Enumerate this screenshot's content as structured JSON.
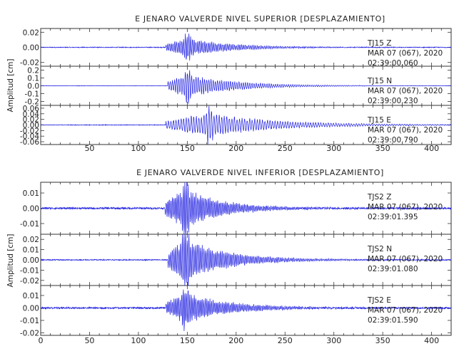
{
  "chart_data": [
    {
      "type": "line",
      "title": "E JENARO VALVERDE NIVEL SUPERIOR [DESPLAZAMIENTO]",
      "ylabel": "Amplitud [cm]",
      "xlim": [
        0,
        420
      ],
      "x_ticks": [
        "50",
        "100",
        "150",
        "200",
        "250",
        "300",
        "350",
        "400"
      ],
      "grid": false,
      "panels": [
        {
          "ylim": [
            -0.025,
            0.025
          ],
          "y_ticks": [
            "0.02",
            "0.00",
            "-0.02"
          ],
          "station": "TJ15",
          "component": "Z",
          "date": "MAR 07 (067), 2020",
          "time": "02:39:00.060",
          "trace": {
            "noise": 0.0005,
            "onset": 128,
            "peak": 0.013,
            "peak_t": 150,
            "period": 1.8,
            "decay": 45
          }
        },
        {
          "ylim": [
            -0.25,
            0.25
          ],
          "y_ticks": [
            "0.2",
            "0.1",
            "0.0",
            "-0.1",
            "-0.2"
          ],
          "station": "TJ15",
          "component": "N",
          "date": "MAR 07 (067), 2020",
          "time": "02:39:00.230",
          "trace": {
            "noise": 0.002,
            "onset": 130,
            "peak": 0.16,
            "peak_t": 150,
            "period": 2.2,
            "decay": 50
          }
        },
        {
          "ylim": [
            -0.07,
            0.07
          ],
          "y_ticks": [
            "0.06",
            "0.04",
            "0.02",
            "0.00",
            "-0.02",
            "-0.04",
            "-0.06"
          ],
          "station": "TJ15",
          "component": "E",
          "date": "MAR 07 (067), 2020",
          "time": "02:39:00.790",
          "trace": {
            "noise": 0.001,
            "onset": 128,
            "peak": 0.045,
            "peak_t": 172,
            "period": 2.6,
            "decay": 70
          }
        }
      ]
    },
    {
      "type": "line",
      "title": "E JENARO VALVERDE NIVEL INFERIOR [DESPLAZAMIENTO]",
      "ylabel": "Amplitud [cm]",
      "xlim": [
        0,
        420
      ],
      "x_ticks": [
        "0",
        "50",
        "100",
        "150",
        "200",
        "250",
        "300",
        "350",
        "400"
      ],
      "grid": false,
      "panels": [
        {
          "ylim": [
            -0.017,
            0.017
          ],
          "y_ticks": [
            "0.01",
            "0.00",
            "-0.01"
          ],
          "station": "TJS2",
          "component": "Z",
          "date": "MAR 07 (067), 2020",
          "time": "02:39:01.395",
          "trace": {
            "noise": 0.0006,
            "onset": 127,
            "peak": 0.014,
            "peak_t": 148,
            "period": 1.6,
            "decay": 40
          }
        },
        {
          "ylim": [
            -0.025,
            0.025
          ],
          "y_ticks": [
            "0.02",
            "0.01",
            "0.00",
            "-0.01",
            "-0.02"
          ],
          "station": "TJS2",
          "component": "N",
          "date": "MAR 07 (067), 2020",
          "time": "02:39:01.080",
          "trace": {
            "noise": 0.0005,
            "onset": 130,
            "peak": 0.022,
            "peak_t": 148,
            "period": 1.7,
            "decay": 45
          }
        },
        {
          "ylim": [
            -0.022,
            0.018
          ],
          "y_ticks": [
            "0.01",
            "0.00",
            "-0.01",
            "-0.02"
          ],
          "station": "TJS2",
          "component": "E",
          "date": "MAR 07 (067), 2020",
          "time": "02:39:01.590",
          "trace": {
            "noise": 0.0007,
            "onset": 128,
            "peak": 0.013,
            "peak_t": 148,
            "period": 1.6,
            "decay": 45
          }
        }
      ]
    }
  ],
  "colors": {
    "trace": "#1f1fe0",
    "axis": "#333333",
    "text": "#222222"
  }
}
